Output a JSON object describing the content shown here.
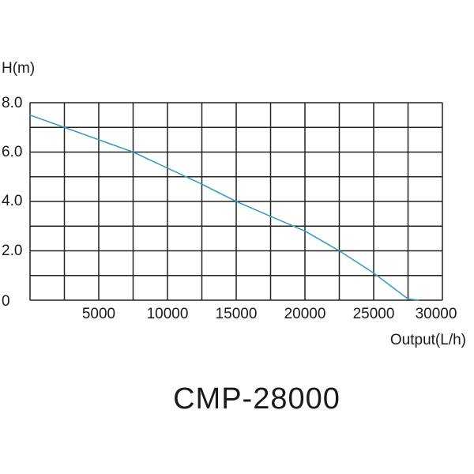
{
  "chart_data": {
    "type": "line",
    "title": "CMP-28000",
    "xlabel": "Output(L/h)",
    "ylabel": "H(m)",
    "xlim": [
      0,
      30000
    ],
    "ylim": [
      0,
      8
    ],
    "grid": true,
    "x_grid_step": 2500,
    "y_grid_step": 1.0,
    "x_tick_labels": [
      "5000",
      "10000",
      "15000",
      "20000",
      "25000",
      "30000"
    ],
    "x_tick_values": [
      5000,
      10000,
      15000,
      20000,
      25000,
      30000
    ],
    "y_tick_labels": [
      "8.0",
      "6.0",
      "4.0",
      "2.0",
      "0"
    ],
    "y_tick_values": [
      8,
      6,
      4,
      2,
      0
    ],
    "series": [
      {
        "name": "CMP-28000",
        "color": "#3a9cc4",
        "x": [
          0,
          2500,
          5000,
          7500,
          10000,
          12500,
          15000,
          17500,
          20000,
          22500,
          25000,
          27500,
          28300
        ],
        "y": [
          7.5,
          7.0,
          6.5,
          6.0,
          5.35,
          4.7,
          4.0,
          3.4,
          2.8,
          2.0,
          1.1,
          0.05,
          0.0
        ]
      }
    ],
    "legend": null
  },
  "style": {
    "grid_color": "#222222",
    "curve_color": "#3a9cc4",
    "text_color": "#1a1a1a"
  }
}
